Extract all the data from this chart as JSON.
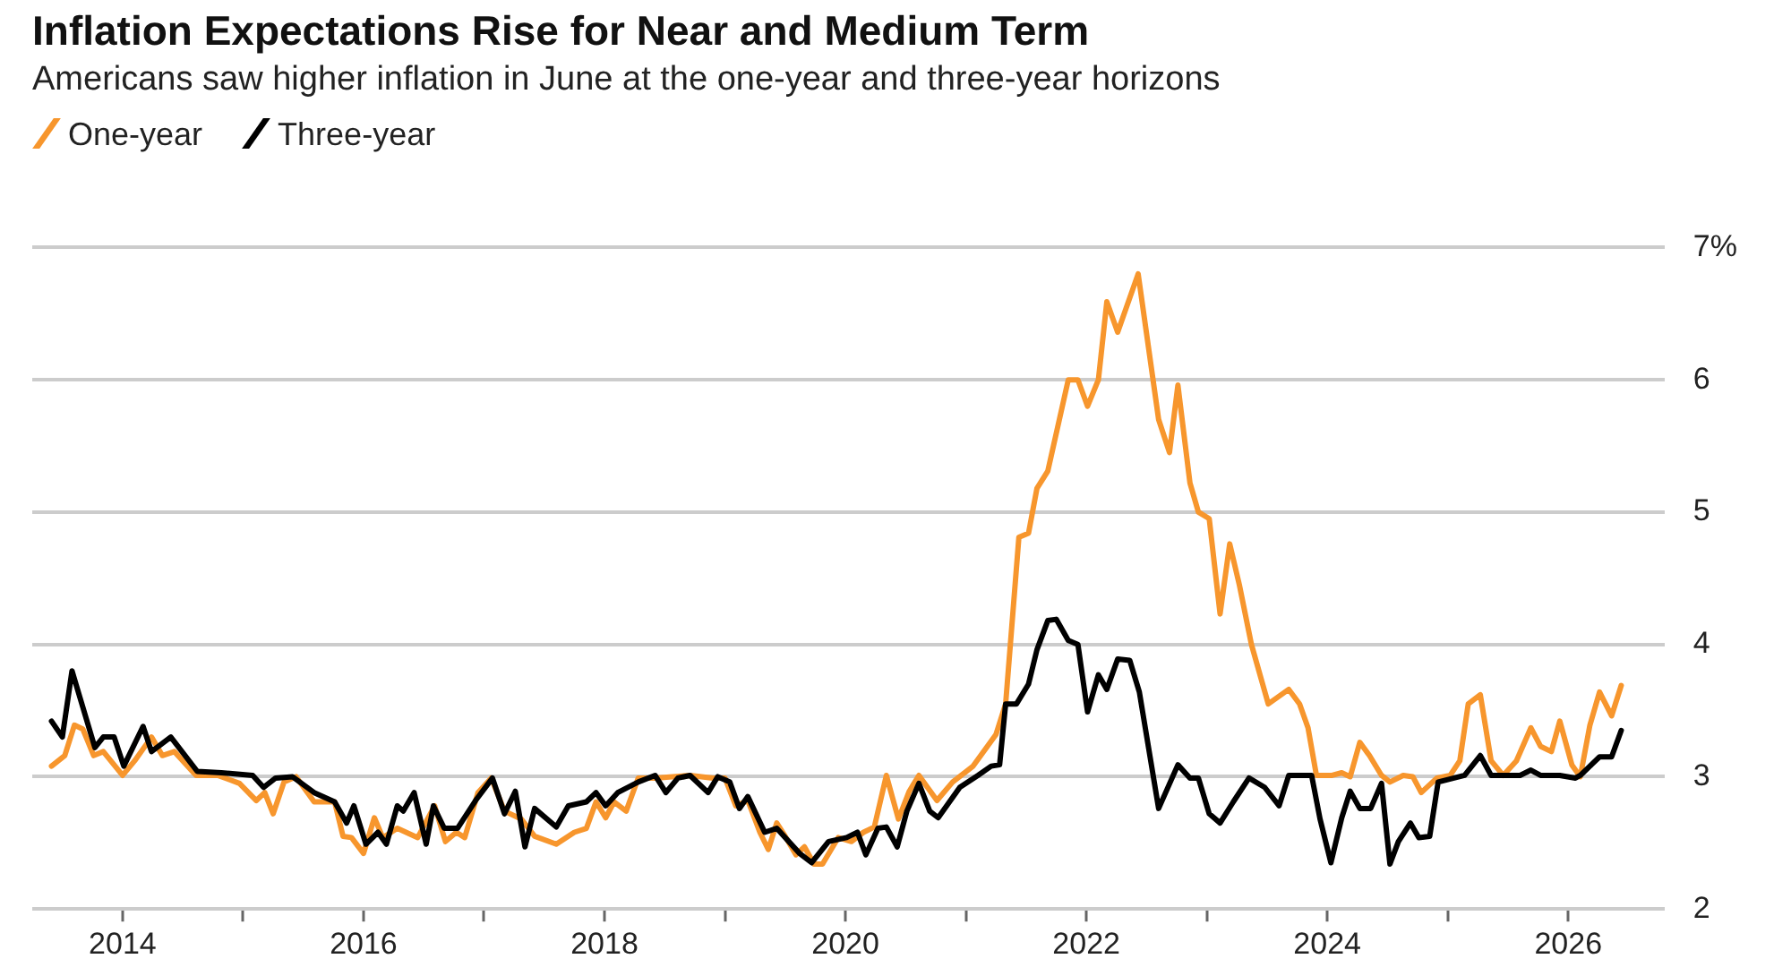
{
  "chart_data": {
    "type": "line",
    "title": "Inflation Expectations Rise for Near and Medium Term",
    "subtitle": "Americans saw higher inflation in June at the one-year and three-year horizons",
    "legend": "top left",
    "grid": "y",
    "marker": "none",
    "line_style": "solid",
    "xlim": [
      2013.25,
      2026.8
    ],
    "xticks": [
      2014,
      {
        "value": 2015,
        "label": null
      },
      2016,
      {
        "value": 2017,
        "label": null
      },
      2018,
      {
        "value": 2019,
        "label": null
      },
      2020,
      {
        "value": 2021,
        "label": null
      },
      2022,
      {
        "value": 2023,
        "label": null
      },
      2024,
      {
        "value": 2025,
        "label": null
      },
      2026
    ],
    "ylim": [
      2,
      7
    ],
    "yticks": [
      2,
      3,
      4,
      5,
      6,
      {
        "value": 7,
        "label": "7%"
      }
    ],
    "series": [
      {
        "name": "One-year",
        "color": "#f7962d",
        "x": [
          2013.41,
          2013.52,
          2013.6,
          2013.67,
          2013.76,
          2013.84,
          2014.0,
          2014.1,
          2014.24,
          2014.33,
          2014.43,
          2014.61,
          2014.79,
          2014.97,
          2015.11,
          2015.18,
          2015.25,
          2015.34,
          2015.44,
          2015.59,
          2015.76,
          2015.83,
          2015.9,
          2016.0,
          2016.09,
          2016.16,
          2016.28,
          2016.45,
          2016.59,
          2016.68,
          2016.77,
          2016.84,
          2016.95,
          2017.06,
          2017.17,
          2017.31,
          2017.42,
          2017.6,
          2017.75,
          2017.85,
          2017.93,
          2018.01,
          2018.08,
          2018.18,
          2018.28,
          2018.42,
          2018.71,
          2018.9,
          2019.0,
          2019.09,
          2019.19,
          2019.29,
          2019.36,
          2019.43,
          2019.5,
          2019.59,
          2019.66,
          2019.74,
          2019.81,
          2019.94,
          2020.05,
          2020.15,
          2020.24,
          2020.34,
          2020.44,
          2020.53,
          2020.61,
          2020.76,
          2020.89,
          2021.06,
          2021.25,
          2021.33,
          2021.44,
          2021.52,
          2021.59,
          2021.68,
          2021.85,
          2021.93,
          2022.01,
          2022.1,
          2022.17,
          2022.26,
          2022.43,
          2022.6,
          2022.69,
          2022.76,
          2022.86,
          2022.93,
          2023.02,
          2023.11,
          2023.19,
          2023.27,
          2023.37,
          2023.51,
          2023.68,
          2023.77,
          2023.84,
          2023.91,
          2024.04,
          2024.12,
          2024.19,
          2024.27,
          2024.35,
          2024.45,
          2024.52,
          2024.63,
          2024.71,
          2024.78,
          2024.91,
          2025.02,
          2025.1,
          2025.17,
          2025.27,
          2025.36,
          2025.46,
          2025.57,
          2025.69,
          2025.77,
          2025.86,
          2025.93,
          2026.03,
          2026.1,
          2026.18,
          2026.26,
          2026.36,
          2026.44
        ],
        "values": [
          3.08,
          3.16,
          3.39,
          3.36,
          3.16,
          3.19,
          3.01,
          3.12,
          3.3,
          3.16,
          3.19,
          3.01,
          3.01,
          2.95,
          2.82,
          2.88,
          2.72,
          2.96,
          3.0,
          2.81,
          2.81,
          2.55,
          2.54,
          2.42,
          2.69,
          2.54,
          2.61,
          2.54,
          2.78,
          2.51,
          2.58,
          2.54,
          2.88,
          2.99,
          2.74,
          2.68,
          2.55,
          2.49,
          2.58,
          2.61,
          2.81,
          2.69,
          2.81,
          2.74,
          2.99,
          2.99,
          3.01,
          2.99,
          2.99,
          2.78,
          2.82,
          2.58,
          2.45,
          2.65,
          2.55,
          2.41,
          2.47,
          2.34,
          2.34,
          2.54,
          2.51,
          2.58,
          2.62,
          3.01,
          2.68,
          2.89,
          3.01,
          2.82,
          2.96,
          3.08,
          3.32,
          3.55,
          4.81,
          4.84,
          5.18,
          5.31,
          6.0,
          6.0,
          5.8,
          6.0,
          6.59,
          6.36,
          6.8,
          5.7,
          5.45,
          5.96,
          5.22,
          5.0,
          4.95,
          4.23,
          4.76,
          4.45,
          4.0,
          3.55,
          3.66,
          3.55,
          3.37,
          3.01,
          3.01,
          3.03,
          3.0,
          3.26,
          3.16,
          3.01,
          2.96,
          3.01,
          3.0,
          2.88,
          2.99,
          3.01,
          3.12,
          3.55,
          3.62,
          3.12,
          3.01,
          3.12,
          3.37,
          3.23,
          3.19,
          3.42,
          3.09,
          3.0,
          3.39,
          3.64,
          3.46,
          3.69
        ]
      },
      {
        "name": "Three-year",
        "color": "#000000",
        "x": [
          2013.41,
          2013.5,
          2013.58,
          2013.77,
          2013.84,
          2013.93,
          2014.01,
          2014.17,
          2014.24,
          2014.4,
          2014.62,
          2014.82,
          2015.08,
          2015.17,
          2015.27,
          2015.41,
          2015.59,
          2015.76,
          2015.86,
          2015.92,
          2016.02,
          2016.12,
          2016.19,
          2016.28,
          2016.33,
          2016.42,
          2016.52,
          2016.58,
          2016.67,
          2016.78,
          2016.93,
          2017.07,
          2017.17,
          2017.26,
          2017.34,
          2017.42,
          2017.6,
          2017.7,
          2017.85,
          2017.93,
          2018.01,
          2018.11,
          2018.28,
          2018.42,
          2018.51,
          2018.61,
          2018.71,
          2018.86,
          2018.94,
          2019.04,
          2019.12,
          2019.19,
          2019.33,
          2019.43,
          2019.62,
          2019.72,
          2019.86,
          2020.01,
          2020.1,
          2020.17,
          2020.27,
          2020.34,
          2020.43,
          2020.51,
          2020.61,
          2020.7,
          2020.77,
          2020.95,
          2021.1,
          2021.21,
          2021.28,
          2021.33,
          2021.42,
          2021.52,
          2021.59,
          2021.68,
          2021.75,
          2021.85,
          2021.93,
          2022.01,
          2022.1,
          2022.17,
          2022.26,
          2022.36,
          2022.44,
          2022.6,
          2022.76,
          2022.86,
          2022.93,
          2023.02,
          2023.11,
          2023.22,
          2023.35,
          2023.48,
          2023.6,
          2023.68,
          2023.87,
          2023.94,
          2024.03,
          2024.12,
          2024.19,
          2024.27,
          2024.36,
          2024.45,
          2024.52,
          2024.59,
          2024.69,
          2024.76,
          2024.85,
          2024.92,
          2025.14,
          2025.27,
          2025.36,
          2025.6,
          2025.69,
          2025.77,
          2025.93,
          2026.06,
          2026.1,
          2026.18,
          2026.26,
          2026.36,
          2026.44
        ],
        "values": [
          3.42,
          3.3,
          3.8,
          3.22,
          3.3,
          3.3,
          3.08,
          3.38,
          3.19,
          3.3,
          3.04,
          3.03,
          3.01,
          2.92,
          2.99,
          3.0,
          2.88,
          2.81,
          2.65,
          2.78,
          2.49,
          2.58,
          2.49,
          2.78,
          2.74,
          2.88,
          2.49,
          2.78,
          2.61,
          2.61,
          2.82,
          2.99,
          2.72,
          2.89,
          2.47,
          2.76,
          2.62,
          2.78,
          2.81,
          2.88,
          2.78,
          2.88,
          2.96,
          3.01,
          2.88,
          2.99,
          3.01,
          2.88,
          3.0,
          2.96,
          2.76,
          2.85,
          2.58,
          2.61,
          2.42,
          2.35,
          2.51,
          2.54,
          2.58,
          2.41,
          2.61,
          2.62,
          2.47,
          2.74,
          2.95,
          2.74,
          2.69,
          2.92,
          3.01,
          3.08,
          3.09,
          3.55,
          3.55,
          3.7,
          3.96,
          4.18,
          4.19,
          4.03,
          4.0,
          3.49,
          3.77,
          3.66,
          3.89,
          3.88,
          3.64,
          2.76,
          3.09,
          2.99,
          2.99,
          2.72,
          2.65,
          2.81,
          2.99,
          2.92,
          2.78,
          3.01,
          3.01,
          2.68,
          2.35,
          2.69,
          2.89,
          2.76,
          2.76,
          2.95,
          2.34,
          2.51,
          2.65,
          2.54,
          2.55,
          2.96,
          3.01,
          3.16,
          3.01,
          3.01,
          3.05,
          3.01,
          3.01,
          2.99,
          3.01,
          3.08,
          3.15,
          3.15,
          3.35
        ]
      }
    ]
  }
}
